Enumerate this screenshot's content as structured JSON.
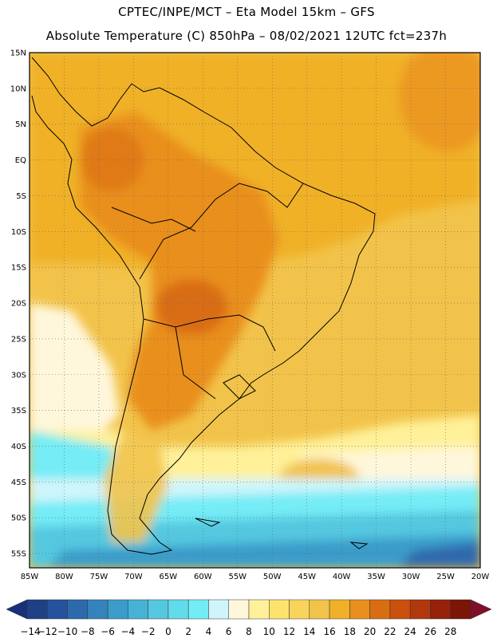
{
  "header": {
    "line1": "CPTEC/INPE/MCT –  Eta Model 15km – GFS",
    "line2": "Absolute Temperature (C) 850hPa – 08/02/2021 12UTC fct=237h"
  },
  "map": {
    "lat_labels": [
      "15N",
      "10N",
      "5N",
      "EQ",
      "5S",
      "10S",
      "15S",
      "20S",
      "25S",
      "30S",
      "35S",
      "40S",
      "45S",
      "50S",
      "55S"
    ],
    "lon_labels": [
      "85W",
      "80W",
      "75W",
      "70W",
      "65W",
      "60W",
      "55W",
      "50W",
      "45W",
      "40W",
      "35W",
      "30W",
      "25W",
      "20W"
    ],
    "lat_range": [
      15,
      -57
    ],
    "lon_range": [
      -85,
      -20
    ]
  },
  "colorbar": {
    "labels": [
      "-14",
      "-12",
      "-10",
      "-8",
      "-6",
      "-4",
      "-2",
      "0",
      "2",
      "4",
      "6",
      "8",
      "10",
      "12",
      "14",
      "16",
      "18",
      "20",
      "22",
      "24",
      "26",
      "28"
    ],
    "colors": [
      "#1f3f86",
      "#24529c",
      "#2d69ad",
      "#3583bd",
      "#3b9cca",
      "#46b3d6",
      "#55c8e0",
      "#62dbea",
      "#74ecf6",
      "#cff5fb",
      "#fff7dc",
      "#fff199",
      "#fce36d",
      "#f8d45c",
      "#f2c34a",
      "#f0b128",
      "#e98f1d",
      "#d96d12",
      "#c9500d",
      "#b1380c",
      "#962209",
      "#7a1508"
    ],
    "below_color": "#1a2f7a",
    "above_color": "#800f2a"
  }
}
